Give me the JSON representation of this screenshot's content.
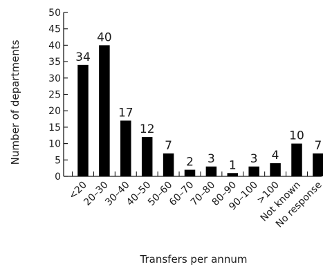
{
  "chart_data": {
    "type": "bar",
    "xlabel": "Transfers per annum",
    "ylabel": "Number of departments",
    "ylim": [
      0,
      50
    ],
    "yticks": [
      "0",
      "5",
      "10",
      "15",
      "20",
      "25",
      "30",
      "35",
      "40",
      "45",
      "50"
    ],
    "categories": [
      "<20",
      "20–30",
      "30–40",
      "40–50",
      "50–60",
      "60–70",
      "70–80",
      "80–90",
      "90–100",
      ">100",
      "Not known",
      "No response"
    ],
    "values": [
      34,
      40,
      17,
      12,
      7,
      2,
      3,
      1,
      3,
      4,
      10,
      7
    ],
    "value_labels": [
      "34",
      "40",
      "17",
      "12",
      "7",
      "2",
      "3",
      "1",
      "3",
      "4",
      "10",
      "7"
    ],
    "bar_color": "#000000",
    "axis_color": "#1a1a1a",
    "grid": false,
    "legend": "none"
  }
}
